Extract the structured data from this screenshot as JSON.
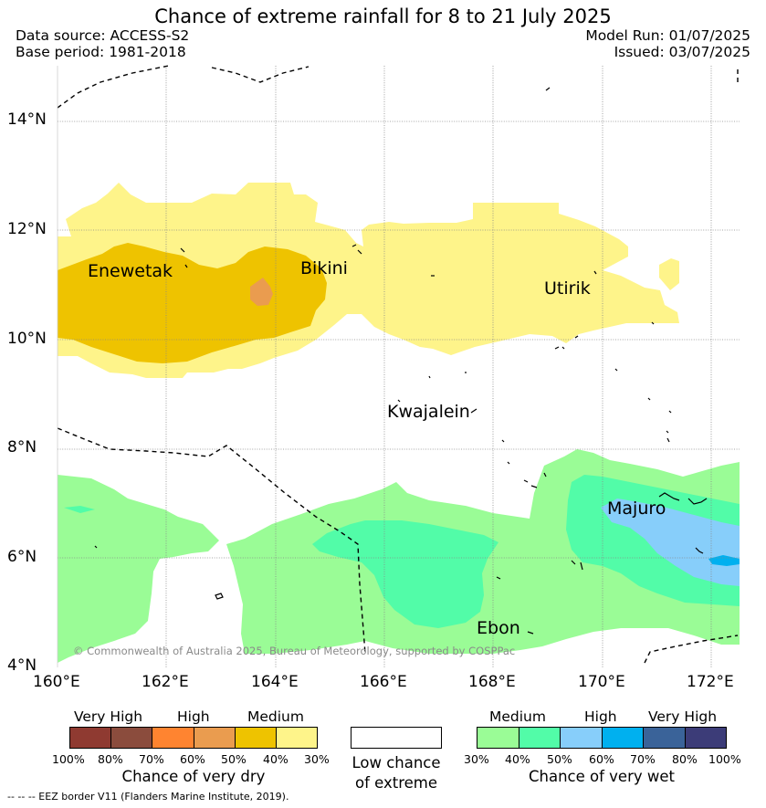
{
  "title": "Chance of extreme rainfall for 8 to 21 July 2025",
  "header": {
    "data_source": "Data source: ACCESS-S2",
    "base_period": "Base period: 1981-2018",
    "model_run": "Model Run: 01/07/2025",
    "issued": "Issued: 03/07/2025"
  },
  "map": {
    "lat_ticks": [
      "14°N",
      "12°N",
      "10°N",
      "8°N",
      "6°N",
      "4°N"
    ],
    "lon_ticks": [
      "160°E",
      "162°E",
      "164°E",
      "166°E",
      "168°E",
      "170°E",
      "172°E"
    ],
    "places": [
      {
        "name": "Enewetak"
      },
      {
        "name": "Bikini"
      },
      {
        "name": "Utirik"
      },
      {
        "name": "Kwajalein"
      },
      {
        "name": "Majuro"
      },
      {
        "name": "Ebon"
      }
    ],
    "copyright": "© Commonwealth of Australia 2025, Bureau of Meteorology, supported by COSPPac"
  },
  "legend": {
    "dry": {
      "headers": [
        "Very High",
        "High",
        "Medium"
      ],
      "colors": [
        "#8f3a31",
        "#8b4c3d",
        "#ff8430",
        "#ea9c4f",
        "#eec300",
        "#fef48a"
      ],
      "ticks": [
        "100%",
        "80%",
        "70%",
        "60%",
        "50%",
        "40%",
        "30%"
      ],
      "caption": "Chance of very dry"
    },
    "low": {
      "caption_line1": "Low chance",
      "caption_line2": "of extreme",
      "color": "#ffffff"
    },
    "wet": {
      "headers": [
        "Medium",
        "High",
        "Very High"
      ],
      "colors": [
        "#9afc96",
        "#52fca8",
        "#87cefa",
        "#00b0ef",
        "#3a6399",
        "#3c3c78"
      ],
      "ticks": [
        "30%",
        "40%",
        "50%",
        "60%",
        "70%",
        "80%",
        "100%"
      ],
      "caption": "Chance of very wet"
    }
  },
  "footnote": "--  --  -- EEZ border V11 (Flanders Marine Institute, 2019)."
}
